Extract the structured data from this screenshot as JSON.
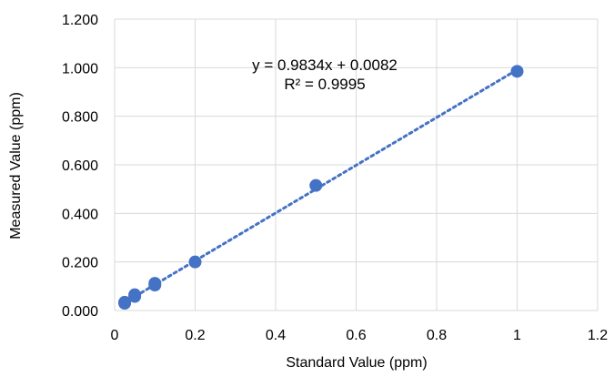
{
  "chart_data": {
    "type": "scatter",
    "title": "",
    "xlabel": "Standard Value (ppm)",
    "ylabel": "Measured Value (ppm)",
    "xlim": [
      0,
      1.2
    ],
    "ylim": [
      0,
      1.2
    ],
    "x_ticks": [
      "0",
      "0.2",
      "0.4",
      "0.6",
      "0.8",
      "1",
      "1.2"
    ],
    "y_ticks": [
      "0.000",
      "0.200",
      "0.400",
      "0.600",
      "0.800",
      "1.000",
      "1.200"
    ],
    "grid": true,
    "legend": "none",
    "marker_color": "#4472C4",
    "trendline_color": "#4472C4",
    "series": [
      {
        "x": [
          0.025,
          0.025,
          0.05,
          0.05,
          0.1,
          0.1,
          0.2,
          0.5,
          1.0
        ],
        "y": [
          0.03,
          0.034,
          0.058,
          0.065,
          0.105,
          0.112,
          0.2,
          0.515,
          0.985
        ]
      }
    ],
    "trendline": {
      "type": "linear",
      "slope": 0.9834,
      "intercept": 0.0082,
      "x_range": [
        0.025,
        1.0
      ],
      "equation": "y = 0.9834x + 0.0082",
      "r2_label": "R² = 0.9995"
    }
  }
}
